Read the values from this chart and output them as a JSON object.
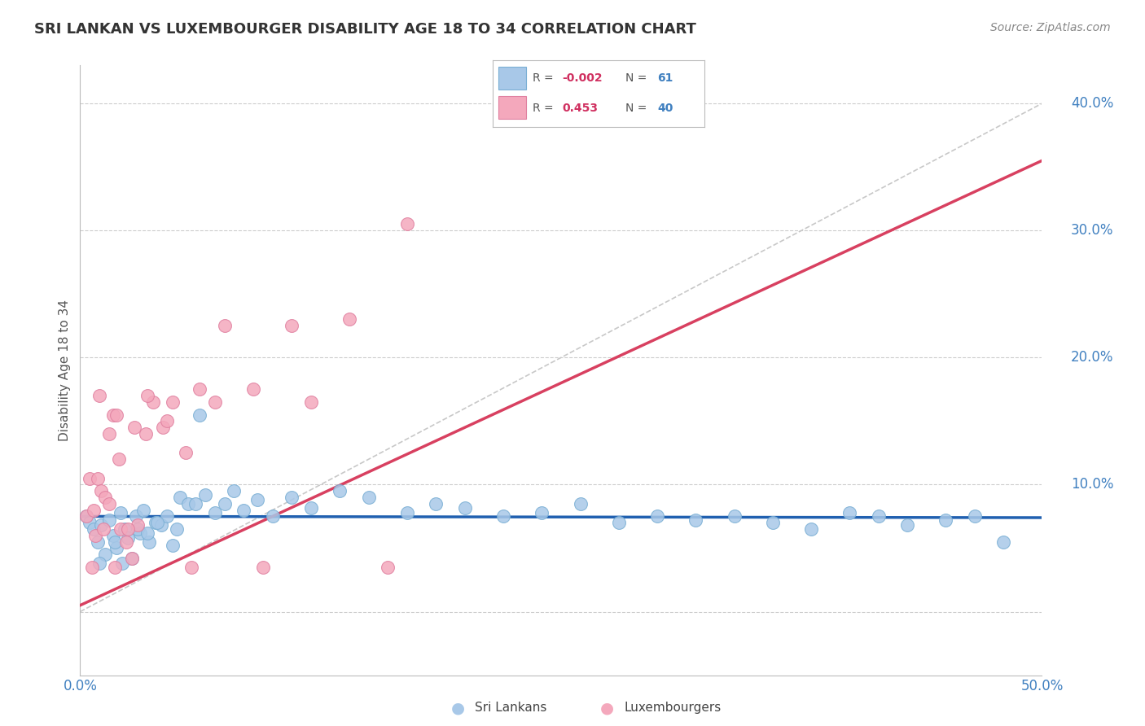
{
  "title": "SRI LANKAN VS LUXEMBOURGER DISABILITY AGE 18 TO 34 CORRELATION CHART",
  "source": "Source: ZipAtlas.com",
  "ylabel": "Disability Age 18 to 34",
  "xlim": [
    0.0,
    50.0
  ],
  "ylim": [
    -5.0,
    43.0
  ],
  "yticks": [
    0.0,
    10.0,
    20.0,
    30.0,
    40.0
  ],
  "ytick_labels": [
    "",
    "10.0%",
    "20.0%",
    "30.0%",
    "40.0%"
  ],
  "background_color": "#ffffff",
  "grid_color": "#cccccc",
  "sri_lankan_color": "#a8c8e8",
  "luxembourger_color": "#f4a8bc",
  "sri_lankan_line_color": "#2060b0",
  "luxembourger_line_color": "#d84060",
  "diagonal_line_color": "#c8c8c8",
  "legend_R_sri": "-0.002",
  "legend_N_sri": "61",
  "legend_R_lux": "0.453",
  "legend_N_lux": "40",
  "sri_lankan_x": [
    0.3,
    0.5,
    0.7,
    0.9,
    1.1,
    1.3,
    1.5,
    1.7,
    1.9,
    2.1,
    2.3,
    2.5,
    2.7,
    2.9,
    3.1,
    3.3,
    3.6,
    3.9,
    4.2,
    4.5,
    4.8,
    5.2,
    5.6,
    6.0,
    6.5,
    7.0,
    7.5,
    8.0,
    8.5,
    9.2,
    10.0,
    11.0,
    12.0,
    13.5,
    15.0,
    17.0,
    18.5,
    20.0,
    22.0,
    24.0,
    26.0,
    28.0,
    30.0,
    32.0,
    34.0,
    36.0,
    38.0,
    40.0,
    41.5,
    43.0,
    45.0,
    46.5,
    48.0,
    1.0,
    1.8,
    2.2,
    3.0,
    3.5,
    4.0,
    5.0,
    6.2
  ],
  "sri_lankan_y": [
    7.5,
    7.0,
    6.5,
    5.5,
    6.8,
    4.5,
    7.2,
    6.0,
    5.0,
    7.8,
    6.5,
    5.8,
    4.2,
    7.5,
    6.2,
    8.0,
    5.5,
    7.0,
    6.8,
    7.5,
    5.2,
    9.0,
    8.5,
    8.5,
    9.2,
    7.8,
    8.5,
    9.5,
    8.0,
    8.8,
    7.5,
    9.0,
    8.2,
    9.5,
    9.0,
    7.8,
    8.5,
    8.2,
    7.5,
    7.8,
    8.5,
    7.0,
    7.5,
    7.2,
    7.5,
    7.0,
    6.5,
    7.8,
    7.5,
    6.8,
    7.2,
    7.5,
    5.5,
    3.8,
    5.5,
    3.8,
    6.5,
    6.2,
    7.0,
    6.5,
    15.5
  ],
  "luxembourger_x": [
    0.3,
    0.5,
    0.7,
    0.9,
    1.1,
    1.3,
    1.5,
    1.7,
    1.9,
    2.1,
    2.4,
    2.7,
    3.0,
    3.4,
    3.8,
    4.3,
    4.8,
    5.5,
    6.2,
    7.5,
    9.0,
    11.0,
    14.0,
    17.0,
    1.0,
    1.5,
    2.0,
    2.8,
    3.5,
    4.5,
    5.8,
    7.0,
    9.5,
    12.0,
    16.0,
    0.6,
    0.8,
    1.2,
    1.8,
    2.5
  ],
  "luxembourger_y": [
    7.5,
    10.5,
    8.0,
    10.5,
    9.5,
    9.0,
    8.5,
    15.5,
    15.5,
    6.5,
    5.5,
    4.2,
    6.8,
    14.0,
    16.5,
    14.5,
    16.5,
    12.5,
    17.5,
    22.5,
    17.5,
    22.5,
    23.0,
    30.5,
    17.0,
    14.0,
    12.0,
    14.5,
    17.0,
    15.0,
    3.5,
    16.5,
    3.5,
    16.5,
    3.5,
    3.5,
    6.0,
    6.5,
    3.5,
    6.5
  ]
}
